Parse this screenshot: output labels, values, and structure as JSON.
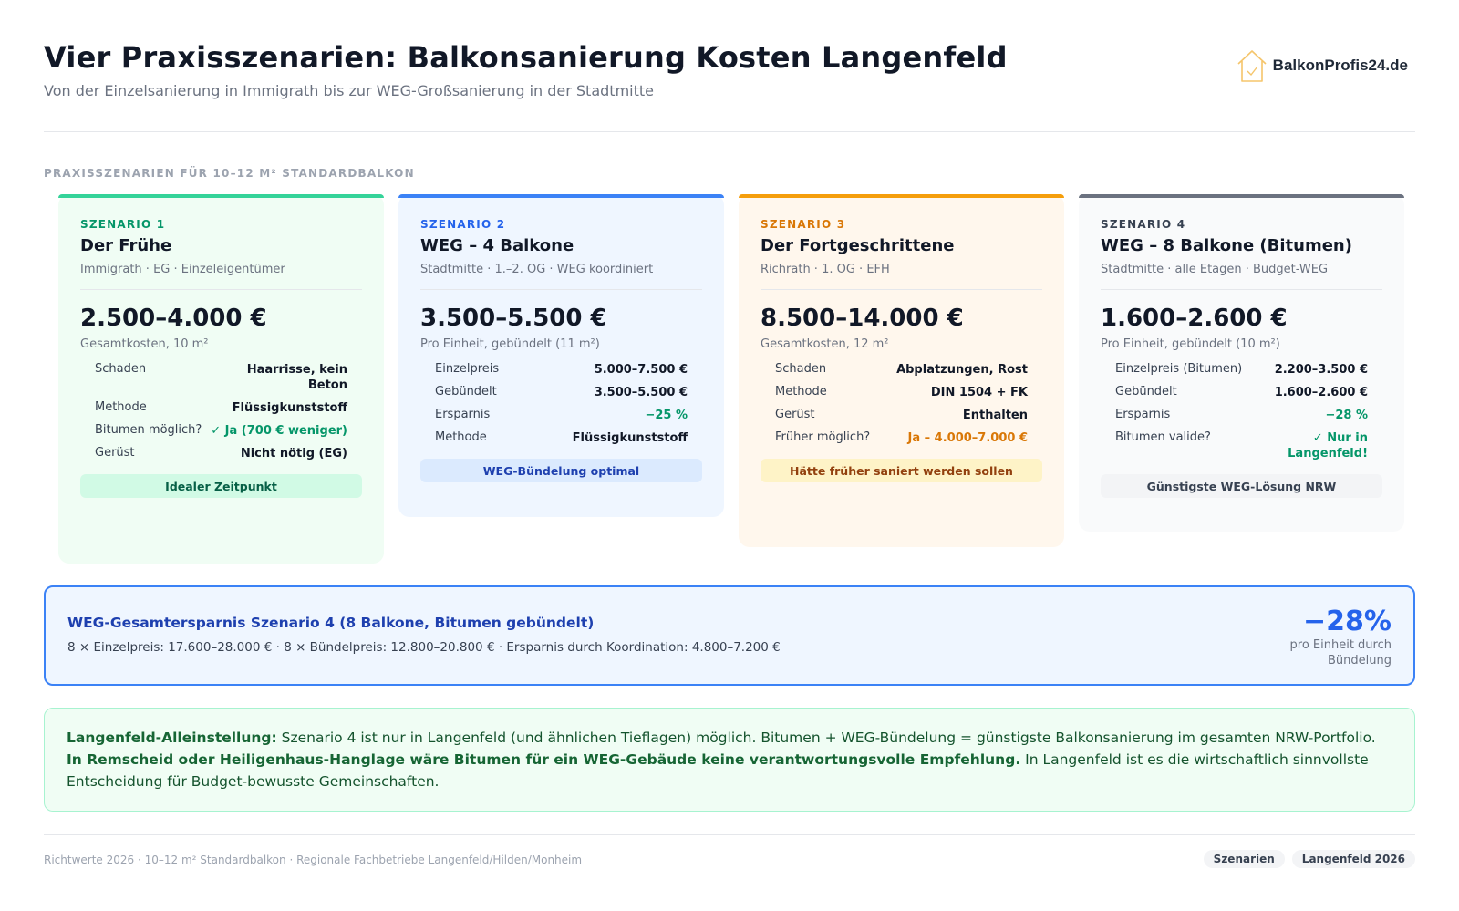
{
  "header": {
    "title": "Vier Praxisszenarien: Balkonsanierung Kosten Langenfeld",
    "subtitle": "Von der Einzelsanierung in Immigrath bis zur WEG-Großsanierung in der Stadtmitte",
    "logo_text": "BalkonProfis24.de",
    "logo_icon": "house-check-icon"
  },
  "section_label": "PRAXISSZENARIEN FÜR 10–12 M² STANDARDBALKON",
  "scenarios": [
    {
      "tag": "SZENARIO 1",
      "title": "Der Frühe",
      "sub": "Immigrath · EG · Einzeleigentümer",
      "price": "2.500–4.000 €",
      "price_sub": "Gesamtkosten, 10 m²",
      "rows": [
        {
          "k": "Schaden",
          "v": "Haarrisse, kein Beton"
        },
        {
          "k": "Methode",
          "v": "Flüssigkunststoff"
        },
        {
          "k": "Bitumen möglich?",
          "v": "✓ Ja (700 € weniger)"
        },
        {
          "k": "Gerüst",
          "v": "Nicht nötig (EG)"
        }
      ],
      "pill": "Idealer Zeitpunkt",
      "color": "#34d399"
    },
    {
      "tag": "SZENARIO 2",
      "title": "WEG – 4 Balkone",
      "sub": "Stadtmitte · 1.–2. OG · WEG koordiniert",
      "price": "3.500–5.500 €",
      "price_sub": "Pro Einheit, gebündelt (11 m²)",
      "rows": [
        {
          "k": "Einzelpreis",
          "v": "5.000–7.500 €"
        },
        {
          "k": "Gebündelt",
          "v": "3.500–5.500 €"
        },
        {
          "k": "Ersparnis",
          "v": "−25 %"
        },
        {
          "k": "Methode",
          "v": "Flüssigkunststoff"
        }
      ],
      "pill": "WEG-Bündelung optimal",
      "color": "#3b82f6"
    },
    {
      "tag": "SZENARIO 3",
      "title": "Der Fortgeschrittene",
      "sub": "Richrath · 1. OG · EFH",
      "price": "8.500–14.000 €",
      "price_sub": "Gesamtkosten, 12 m²",
      "rows": [
        {
          "k": "Schaden",
          "v": "Abplatzungen, Rost"
        },
        {
          "k": "Methode",
          "v": "DIN 1504 + FK"
        },
        {
          "k": "Gerüst",
          "v": "Enthalten"
        },
        {
          "k": "Früher möglich?",
          "v": "Ja – 4.000–7.000 €"
        }
      ],
      "pill": "Hätte früher saniert werden sollen",
      "color": "#f59e0b"
    },
    {
      "tag": "SZENARIO 4",
      "title": "WEG – 8 Balkone (Bitumen)",
      "sub": "Stadtmitte · alle Etagen · Budget-WEG",
      "price": "1.600–2.600 €",
      "price_sub": "Pro Einheit, gebündelt (10 m²)",
      "rows": [
        {
          "k": "Einzelpreis (Bitumen)",
          "v": "2.200–3.500 €"
        },
        {
          "k": "Gebündelt",
          "v": "1.600–2.600 €"
        },
        {
          "k": "Ersparnis",
          "v": "−28 %"
        },
        {
          "k": "Bitumen valide?",
          "v": "✓ Nur in Langenfeld!"
        }
      ],
      "pill": "Günstigste WEG-Lösung NRW",
      "color": "#6b7280"
    }
  ],
  "savings": {
    "title": "WEG-Gesamtersparnis Szenario 4 (8 Balkone, Bitumen gebündelt)",
    "text": "8 × Einzelpreis: 17.600–28.000 € · 8 × Bündelpreis: 12.800–20.800 € · Ersparnis durch Koordination: 4.800–7.200 €",
    "pct": "−28%",
    "pct_sub": "pro Einheit durch Bündelung"
  },
  "note": {
    "lead": "Langenfeld-Alleinstellung:",
    "text1": " Szenario 4 ist nur in Langenfeld (und ähnlichen Tieflagen) möglich. Bitumen + WEG-Bündelung = günstigste Balkonsanierung im gesamten NRW-Portfolio. ",
    "bold2": "In Remscheid oder Heiligenhaus-Hanglage wäre Bitumen für ein WEG-Gebäude keine verantwortungsvolle Empfehlung.",
    "text2": " In Langenfeld ist es die wirtschaftlich sinnvollste Entscheidung für Budget-bewusste Gemeinschaften."
  },
  "footer": {
    "text": "Richtwerte 2026 · 10–12 m² Standardbalkon · Regionale Fachbetriebe Langenfeld/Hilden/Monheim",
    "chips": [
      "Szenarien",
      "Langenfeld 2026"
    ]
  }
}
